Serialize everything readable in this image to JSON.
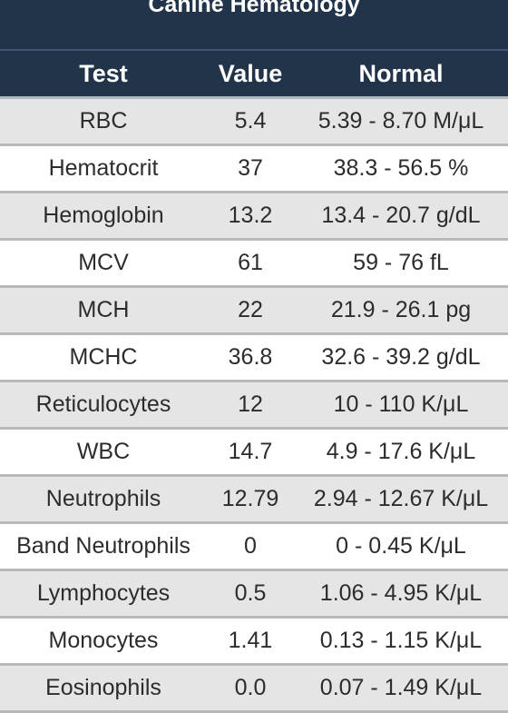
{
  "title": "Canine Hematology",
  "headers": {
    "test": "Test",
    "value": "Value",
    "normal": "Normal"
  },
  "rows": [
    {
      "test": "RBC",
      "value": "5.4",
      "normal": "5.39 - 8.70 M/μL"
    },
    {
      "test": "Hematocrit",
      "value": "37",
      "normal": "38.3 - 56.5 %"
    },
    {
      "test": "Hemoglobin",
      "value": "13.2",
      "normal": "13.4 - 20.7 g/dL"
    },
    {
      "test": "MCV",
      "value": "61",
      "normal": "59 - 76 fL"
    },
    {
      "test": "MCH",
      "value": "22",
      "normal": "21.9 - 26.1 pg"
    },
    {
      "test": "MCHC",
      "value": "36.8",
      "normal": "32.6 - 39.2 g/dL"
    },
    {
      "test": "Reticulocytes",
      "value": "12",
      "normal": "10 - 110 K/μL"
    },
    {
      "test": "WBC",
      "value": "14.7",
      "normal": "4.9 - 17.6 K/μL"
    },
    {
      "test": "Neutrophils",
      "value": "12.79",
      "normal": "2.94 - 12.67 K/μL"
    },
    {
      "test": "Band Neutrophils",
      "value": "0",
      "normal": "0 - 0.45 K/μL"
    },
    {
      "test": "Lymphocytes",
      "value": "0.5",
      "normal": "1.06 - 4.95 K/μL"
    },
    {
      "test": "Monocytes",
      "value": "1.41",
      "normal": "0.13 - 1.15 K/μL"
    },
    {
      "test": "Eosinophils",
      "value": "0.0",
      "normal": "0.07 - 1.49 K/μL"
    }
  ],
  "colors": {
    "header_bg": "#223449",
    "row_shade": "#e5e5e5",
    "row_plain": "#ffffff",
    "text": "#2c2c2c"
  }
}
